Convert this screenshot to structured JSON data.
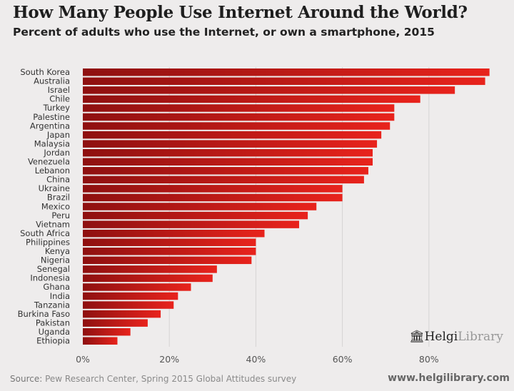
{
  "chart_data": {
    "type": "bar",
    "orientation": "horizontal",
    "title": "How Many People Use Internet Around the World?",
    "subtitle": "Percent of adults who use the Internet, or own a smartphone, 2015",
    "categories": [
      "South Korea",
      "Australia",
      "Israel",
      "Chile",
      "Turkey",
      "Palestine",
      "Argentina",
      "Japan",
      "Malaysia",
      "Jordan",
      "Venezuela",
      "Lebanon",
      "China",
      "Ukraine",
      "Brazil",
      "Mexico",
      "Peru",
      "Vietnam",
      "South Africa",
      "Philippines",
      "Kenya",
      "Nigeria",
      "Senegal",
      "Indonesia",
      "Ghana",
      "India",
      "Tanzania",
      "Burkina Faso",
      "Pakistan",
      "Uganda",
      "Ethiopia"
    ],
    "values": [
      94,
      93,
      86,
      78,
      72,
      72,
      71,
      69,
      68,
      67,
      67,
      66,
      65,
      60,
      60,
      54,
      52,
      50,
      42,
      40,
      40,
      39,
      31,
      30,
      25,
      22,
      21,
      18,
      15,
      11,
      8
    ],
    "xlim": [
      0,
      95
    ],
    "xticks": [
      "0%",
      "20%",
      "40%",
      "60%",
      "80%"
    ],
    "xtick_values": [
      0,
      20,
      40,
      60,
      80
    ],
    "grid": true,
    "bar_color": "#e8231c",
    "bar_color_dark": "#8e1010"
  },
  "footer": {
    "source_label": "Source:",
    "source_text": "Pew Research Center, Spring 2015 Global Attitudes survey",
    "url": "www.helgilibrary.com"
  },
  "logo": {
    "part1": "Helgi",
    "part2": "Library"
  }
}
